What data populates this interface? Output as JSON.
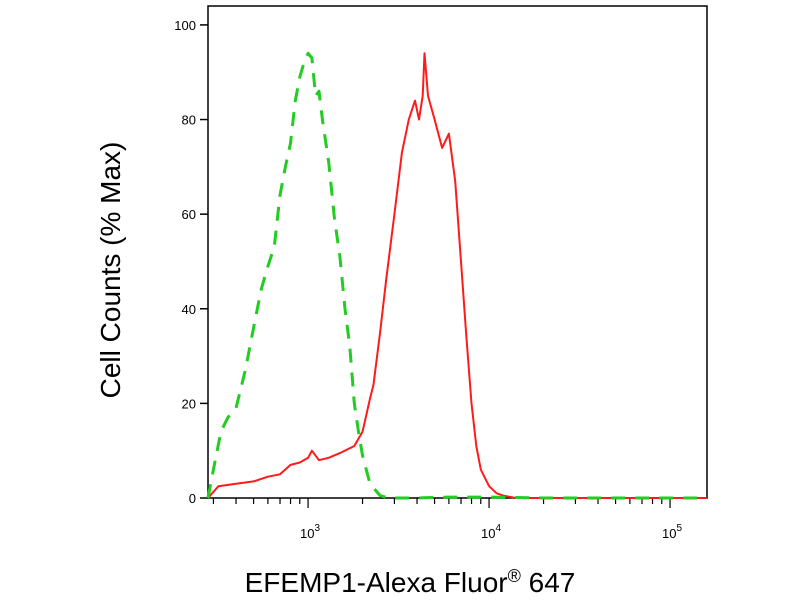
{
  "chart_data": {
    "type": "line",
    "xlabel": "EFEMP1-Alexa Fluor",
    "xlabel_mark": "®",
    "xlabel_suffix": " 647",
    "ylabel": "Cell Counts (% Max)",
    "x_scale": "log",
    "xlim": [
      280,
      160000
    ],
    "ylim": [
      0,
      104
    ],
    "y_ticks": [
      0,
      20,
      40,
      60,
      80,
      100
    ],
    "x_ticks": [
      {
        "value": 1000,
        "base": "10",
        "exp": "3"
      },
      {
        "value": 10000,
        "base": "10",
        "exp": "4"
      },
      {
        "value": 100000,
        "base": "10",
        "exp": "5"
      }
    ],
    "grid": false,
    "series": [
      {
        "color": "#ff1a1a",
        "style": "solid",
        "x": [
          280,
          320,
          400,
          500,
          600,
          700,
          800,
          900,
          1000,
          1050,
          1150,
          1300,
          1500,
          1800,
          2000,
          2200,
          2300,
          2500,
          2700,
          3000,
          3300,
          3600,
          3900,
          4100,
          4300,
          4400,
          4600,
          5000,
          5500,
          6000,
          6500,
          7000,
          7500,
          8000,
          8500,
          9000,
          10000,
          11000,
          12000,
          14000,
          16000,
          20000,
          30000,
          60000,
          100000,
          160000
        ],
        "y": [
          0,
          2.5,
          3,
          3.5,
          4.5,
          5,
          7,
          7.5,
          8.5,
          10,
          8,
          8.5,
          9.5,
          11,
          14,
          21,
          24,
          35,
          46,
          60,
          73,
          80,
          84,
          80,
          85,
          94,
          85,
          80,
          74,
          77,
          67,
          50,
          34,
          20,
          11,
          6,
          2.5,
          1,
          0.5,
          0,
          0,
          0,
          0,
          0,
          0,
          0
        ]
      },
      {
        "color": "#22cc22",
        "style": "dashed",
        "x": [
          280,
          300,
          330,
          360,
          400,
          450,
          500,
          550,
          600,
          650,
          700,
          750,
          800,
          850,
          900,
          950,
          1000,
          1050,
          1100,
          1150,
          1200,
          1300,
          1400,
          1500,
          1600,
          1700,
          1800,
          1900,
          2000,
          2200,
          2500,
          2800,
          3200,
          4000,
          6000,
          10000,
          20000,
          50000,
          100000,
          160000
        ],
        "y": [
          0,
          6,
          14,
          17,
          19,
          27,
          36,
          44,
          49,
          53,
          64,
          70,
          75,
          84,
          89,
          92,
          94,
          93,
          85,
          86,
          80,
          71,
          59,
          51,
          40,
          32,
          20,
          14,
          9,
          3,
          0.5,
          0,
          0,
          0,
          0.2,
          0.2,
          0,
          0,
          0,
          0
        ]
      }
    ]
  }
}
